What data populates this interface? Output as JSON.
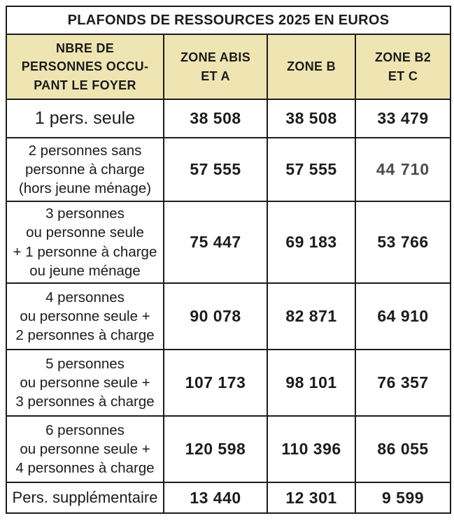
{
  "title": "PLAFONDS DE RESSOURCES 2025 EN EUROS",
  "table": {
    "header": {
      "household": "NBRE DE\nPERSONNES OCCU-\nPANT LE FOYER",
      "zone_abis_a": "ZONE ABIS\nET A",
      "zone_b": "ZONE B",
      "zone_b2_c": "ZONE B2\nET C"
    },
    "rows": [
      {
        "label": "1 pers. seule",
        "zone_abis_a": "38 508",
        "zone_b": "38 508",
        "zone_b2_c": "33 479"
      },
      {
        "label": "2 personnes sans\npersonne à charge\n(hors jeune ménage)",
        "zone_abis_a": "57 555",
        "zone_b": "57 555",
        "zone_b2_c": "44 710"
      },
      {
        "label": "3 personnes\nou personne seule\n+ 1 personne à charge\nou jeune ménage",
        "zone_abis_a": "75 447",
        "zone_b": "69 183",
        "zone_b2_c": "53 766"
      },
      {
        "label": "4 personnes\nou personne seule +\n2 personnes à charge",
        "zone_abis_a": "90 078",
        "zone_b": "82 871",
        "zone_b2_c": "64 910"
      },
      {
        "label": "5 personnes\nou personne seule +\n3 personnes à charge",
        "zone_abis_a": "107 173",
        "zone_b": "98 101",
        "zone_b2_c": "76 357"
      },
      {
        "label": "6 personnes\nou personne seule +\n4 personnes à charge",
        "zone_abis_a": "120 598",
        "zone_b": "110 396",
        "zone_b2_c": "86 055"
      },
      {
        "label": "Pers. supplémentaire",
        "zone_abis_a": "13 440",
        "zone_b": "12 301",
        "zone_b2_c": "9 599"
      }
    ]
  },
  "colors": {
    "header_bg": "#efe5b3",
    "border": "#1c1c1c",
    "text": "#1c1c1c",
    "muted_value": "#4b4b4b"
  },
  "chart_data": {
    "type": "table",
    "title": "PLAFONDS DE RESSOURCES 2025 EN EUROS",
    "columns": [
      "NBRE DE PERSONNES OCCUPANT LE FOYER",
      "ZONE ABIS ET A",
      "ZONE B",
      "ZONE B2 ET C"
    ],
    "rows": [
      [
        "1 pers. seule",
        38508,
        38508,
        33479
      ],
      [
        "2 personnes sans personne à charge (hors jeune ménage)",
        57555,
        57555,
        44710
      ],
      [
        "3 personnes ou personne seule + 1 personne à charge ou jeune ménage",
        75447,
        69183,
        53766
      ],
      [
        "4 personnes ou personne seule + 2 personnes à charge",
        90078,
        82871,
        64910
      ],
      [
        "5 personnes ou personne seule + 3 personnes à charge",
        107173,
        98101,
        76357
      ],
      [
        "6 personnes ou personne seule + 4 personnes à charge",
        120598,
        110396,
        86055
      ],
      [
        "Pers. supplémentaire",
        13440,
        12301,
        9599
      ]
    ]
  }
}
